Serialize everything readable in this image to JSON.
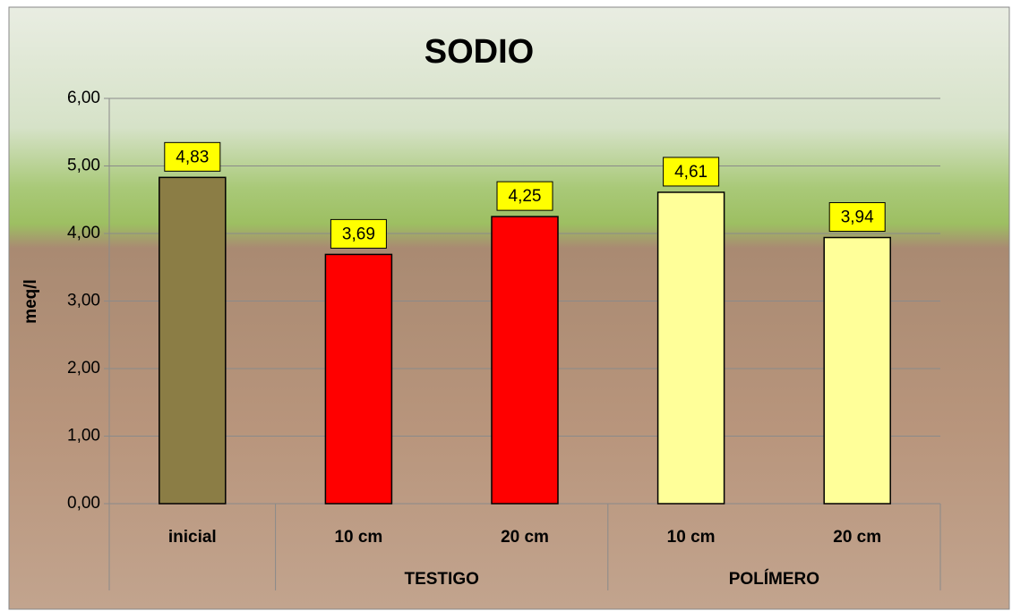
{
  "chart_data": {
    "type": "bar",
    "title": "SODIO",
    "y_label": "meq/l",
    "categories": [
      "inicial",
      "10 cm",
      "20 cm",
      "10 cm",
      "20 cm"
    ],
    "category_groups": [
      null,
      "TESTIGO",
      "TESTIGO",
      "POLÍMERO",
      "POLÍMERO"
    ],
    "values": [
      4.83,
      3.69,
      4.25,
      4.61,
      3.94
    ],
    "value_labels": [
      "4,83",
      "3,69",
      "4,25",
      "4,61",
      "3,94"
    ],
    "colors": [
      "#8b7d45",
      "#ff0000",
      "#ff0000",
      "#ffff99",
      "#ffff99"
    ],
    "ylim": [
      0,
      6
    ],
    "yticks": [
      {
        "value": 0,
        "label": "0,00"
      },
      {
        "value": 1,
        "label": "1,00"
      },
      {
        "value": 2,
        "label": "2,00"
      },
      {
        "value": 3,
        "label": "3,00"
      },
      {
        "value": 4,
        "label": "4,00"
      },
      {
        "value": 5,
        "label": "5,00"
      },
      {
        "value": 6,
        "label": "6,00"
      }
    ],
    "grid": true
  }
}
